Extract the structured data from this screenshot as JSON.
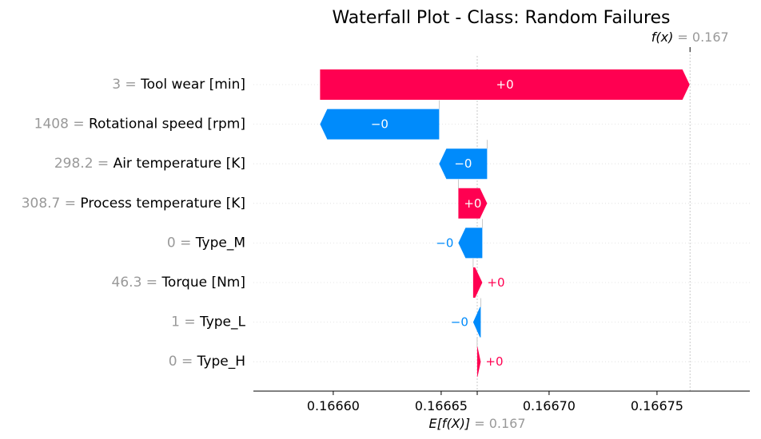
{
  "chart_data": {
    "type": "waterfall",
    "title": "Waterfall Plot - Class: Random Failures",
    "xlim": [
      0.166563,
      0.166793
    ],
    "base_value": 0.1666667,
    "output_value": 0.1667653,
    "base_label_prefix": "E[f(X)]",
    "base_label_value": "= 0.167",
    "output_label_prefix": "f(x)",
    "output_label_value": "= 0.167",
    "x_ticks": [
      0.1666,
      0.16665,
      0.1667,
      0.16675
    ],
    "x_tick_labels": [
      "0.16660",
      "0.16665",
      "0.16670",
      "0.16675"
    ],
    "positive_color": "#ff0051",
    "negative_color": "#008bfb",
    "features": [
      {
        "value": "3",
        "name": "Tool wear [min]",
        "start": 0.16659389,
        "end": 0.16676512,
        "label": "+0"
      },
      {
        "value": "1408",
        "name": "Rotational speed [rpm]",
        "start": 0.16664907,
        "end": 0.16659389,
        "label": "−0"
      },
      {
        "value": "298.2",
        "name": "Air temperature [K]",
        "start": 0.16667129,
        "end": 0.16664907,
        "label": "−0"
      },
      {
        "value": "308.7",
        "name": "Process temperature [K]",
        "start": 0.16665796,
        "end": 0.16667129,
        "label": "+0"
      },
      {
        "value": "0",
        "name": "Type_M",
        "start": 0.16666907,
        "end": 0.16665796,
        "label": "−0"
      },
      {
        "value": "46.3",
        "name": "Torque [Nm]",
        "start": 0.16666481,
        "end": 0.16666907,
        "label": "+0"
      },
      {
        "value": "1",
        "name": "Type_L",
        "start": 0.16666833,
        "end": 0.16666481,
        "label": "−0"
      },
      {
        "value": "0",
        "name": "Type_H",
        "start": 0.16666667,
        "end": 0.16666833,
        "label": "+0"
      }
    ]
  }
}
